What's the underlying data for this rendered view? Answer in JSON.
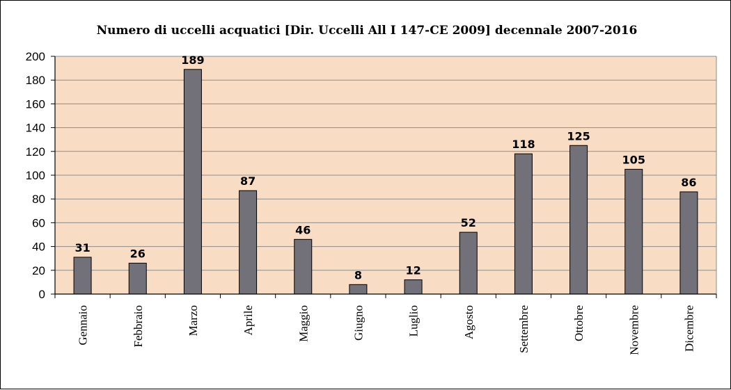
{
  "chart_data": {
    "type": "bar",
    "title": "Numero di uccelli acquatici [Dir. Uccelli All I  147-CE 2009] decennale 2007-2016",
    "categories": [
      "Gennaio",
      "Febbraio",
      "Marzo",
      "Aprile",
      "Maggio",
      "Giugno",
      "Luglio",
      "Agosto",
      "Settembre",
      "Ottobre",
      "Novembre",
      "Dicembre"
    ],
    "values": [
      31,
      26,
      189,
      87,
      46,
      8,
      12,
      52,
      118,
      125,
      105,
      86
    ],
    "ylim": [
      0,
      200
    ],
    "yticks": [
      0,
      20,
      40,
      60,
      80,
      100,
      120,
      140,
      160,
      180,
      200
    ],
    "xlabel": "",
    "ylabel": "",
    "grid": true,
    "legend": "none",
    "colors": {
      "plot_background": "#f9dcc4",
      "bar": "#727078",
      "bar_stroke": "#000000",
      "gridline": "#8c8c8c"
    }
  }
}
